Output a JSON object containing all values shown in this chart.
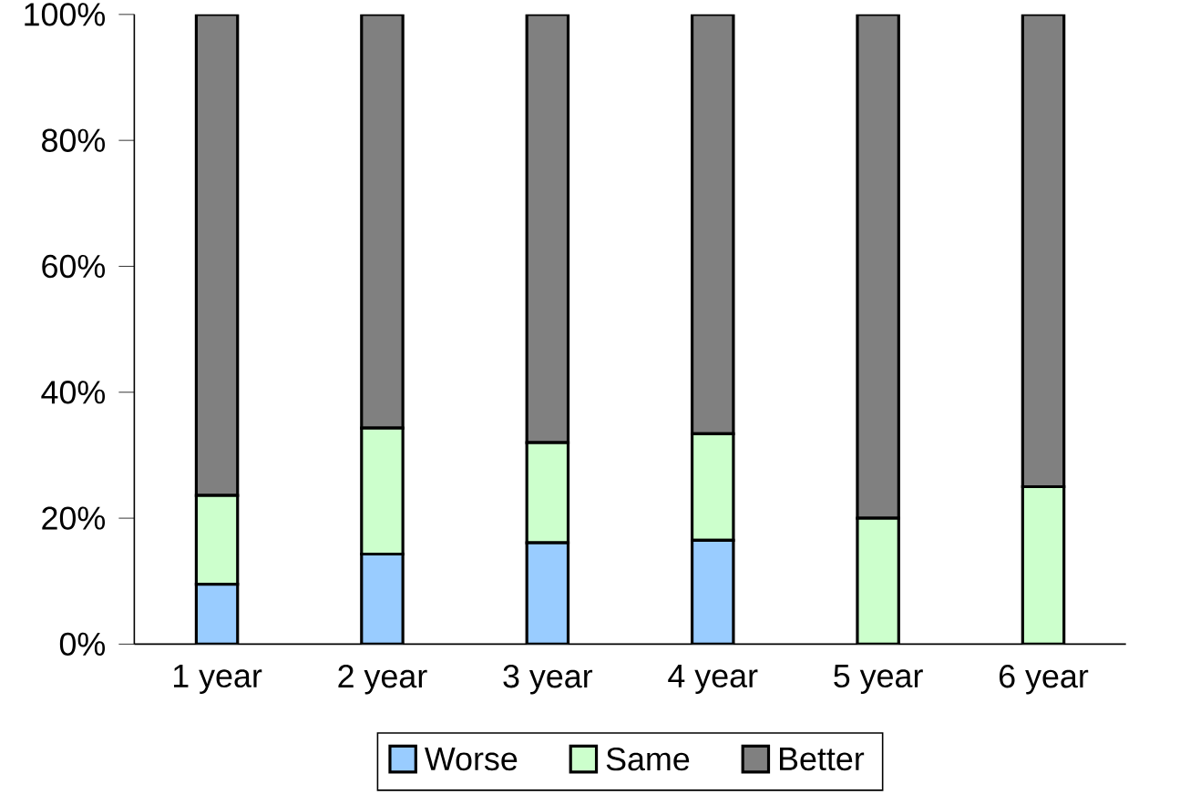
{
  "chart_data": {
    "type": "bar",
    "stacked": true,
    "categories": [
      "1 year",
      "2 year",
      "3 year",
      "4 year",
      "5 year",
      "6 year"
    ],
    "series": [
      {
        "name": "Worse",
        "color": "#99ccff",
        "values": [
          9.5,
          14.3,
          16.1,
          16.5,
          0,
          0
        ]
      },
      {
        "name": "Same",
        "color": "#ccffcc",
        "values": [
          14.1,
          20.0,
          15.9,
          16.9,
          20.0,
          25.0
        ]
      },
      {
        "name": "Better",
        "color": "#808080",
        "values": [
          76.4,
          65.7,
          68.0,
          66.6,
          80.0,
          75.0
        ]
      }
    ],
    "ylim": [
      0,
      100
    ],
    "yticks": [
      {
        "value": 0,
        "label": "0%"
      },
      {
        "value": 20,
        "label": "20%"
      },
      {
        "value": 40,
        "label": "40%"
      },
      {
        "value": 60,
        "label": "60%"
      },
      {
        "value": 80,
        "label": "80%"
      },
      {
        "value": 100,
        "label": "100%"
      }
    ],
    "legend": "bottom"
  }
}
